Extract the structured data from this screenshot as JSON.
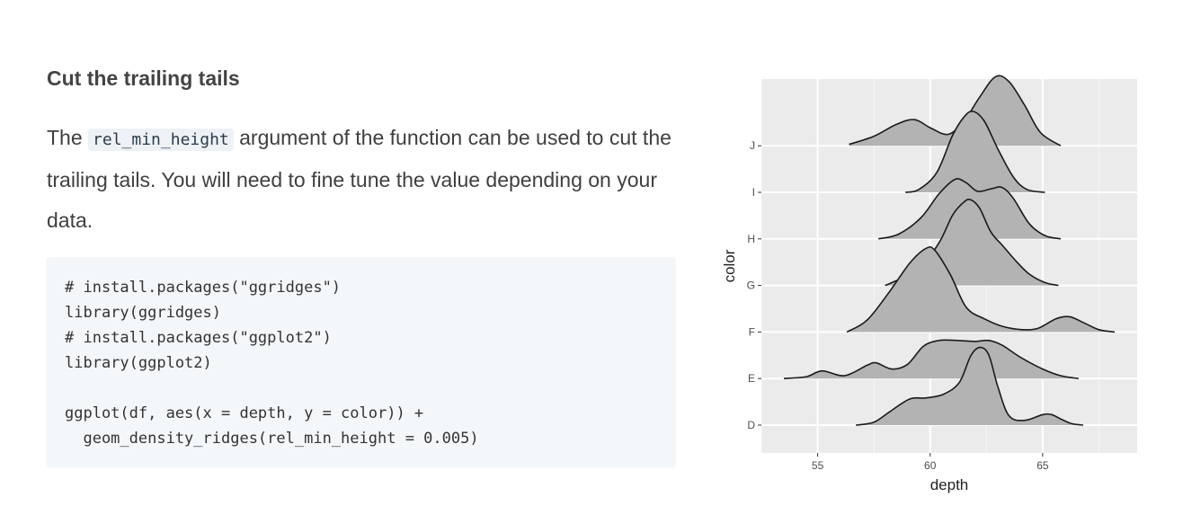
{
  "section": {
    "title": "Cut the trailing tails",
    "paragraph": {
      "before_code": "The ",
      "inline_code": "rel_min_height",
      "after_code": " argument of the function can be used to cut the trailing tails. You will need to fine tune the value depending on your data."
    }
  },
  "code_block": {
    "lines": [
      "# install.packages(\"ggridges\")",
      "library(ggridges)",
      "# install.packages(\"ggplot2\")",
      "library(ggplot2)",
      "",
      "ggplot(df, aes(x = depth, y = color)) +",
      "  geom_density_ridges(rel_min_height = 0.005)"
    ]
  },
  "chart_data": {
    "type": "area",
    "subtype": "density-ridgeline",
    "xlabel": "depth",
    "ylabel": "color",
    "x_ticks": [
      55,
      60,
      65
    ],
    "x_range": [
      52.5,
      69.2
    ],
    "categories": [
      "D",
      "E",
      "F",
      "G",
      "H",
      "I",
      "J"
    ],
    "grid": true,
    "panel_background": "#ebebeb",
    "fill_color": "#b3b3b3",
    "line_color": "#1a1a1a",
    "series": [
      {
        "category": "J",
        "x": [
          56.4,
          57.5,
          58.5,
          59.3,
          60.0,
          60.8,
          61.5,
          62.2,
          62.9,
          63.5,
          64.2,
          64.9,
          65.8
        ],
        "y": [
          0.03,
          0.2,
          0.45,
          0.55,
          0.38,
          0.24,
          0.52,
          1.02,
          1.45,
          1.35,
          0.85,
          0.28,
          0.0
        ]
      },
      {
        "category": "I",
        "x": [
          58.9,
          59.5,
          60.3,
          61.0,
          61.5,
          61.9,
          62.4,
          63.0,
          63.7,
          64.3,
          65.1
        ],
        "y": [
          0.0,
          0.06,
          0.42,
          1.2,
          1.58,
          1.7,
          1.5,
          0.92,
          0.32,
          0.06,
          0.0
        ]
      },
      {
        "category": "H",
        "x": [
          57.7,
          58.6,
          59.6,
          60.4,
          61.1,
          61.6,
          62.1,
          62.7,
          63.2,
          63.7,
          64.4,
          65.1,
          65.8
        ],
        "y": [
          0.0,
          0.1,
          0.45,
          0.95,
          1.25,
          1.18,
          1.0,
          1.05,
          1.08,
          0.85,
          0.32,
          0.07,
          0.0
        ]
      },
      {
        "category": "G",
        "x": [
          58.0,
          58.3,
          59.5,
          60.4,
          61.0,
          61.5,
          61.8,
          62.2,
          62.7,
          63.2,
          63.8,
          64.4,
          65.1,
          65.7
        ],
        "y": [
          0.0,
          0.06,
          0.35,
          0.9,
          1.48,
          1.75,
          1.8,
          1.62,
          1.12,
          0.85,
          0.52,
          0.24,
          0.06,
          0.0
        ]
      },
      {
        "category": "F",
        "x": [
          56.3,
          57.2,
          58.2,
          59.1,
          59.8,
          60.2,
          60.9,
          61.6,
          62.4,
          63.2,
          64.1,
          64.8,
          65.6,
          66.2,
          66.8,
          67.5,
          68.2
        ],
        "y": [
          0.0,
          0.25,
          0.85,
          1.45,
          1.75,
          1.72,
          1.2,
          0.52,
          0.28,
          0.12,
          0.05,
          0.08,
          0.28,
          0.32,
          0.2,
          0.05,
          0.0
        ]
      },
      {
        "category": "E",
        "x": [
          53.5,
          54.5,
          55.2,
          56.2,
          57.2,
          57.6,
          58.3,
          59.0,
          59.7,
          60.4,
          61.2,
          62.0,
          62.6,
          63.2,
          64.0,
          65.0,
          65.8,
          66.6
        ],
        "y": [
          0.0,
          0.04,
          0.16,
          0.06,
          0.28,
          0.33,
          0.2,
          0.3,
          0.68,
          0.8,
          0.8,
          0.78,
          0.8,
          0.7,
          0.45,
          0.2,
          0.06,
          0.0
        ]
      },
      {
        "category": "D",
        "x": [
          56.7,
          57.5,
          58.2,
          59.1,
          59.8,
          60.6,
          61.3,
          61.8,
          62.2,
          62.6,
          63.0,
          63.5,
          64.2,
          65.0,
          65.4,
          65.8,
          66.3,
          66.8
        ],
        "y": [
          0.0,
          0.06,
          0.28,
          0.55,
          0.57,
          0.65,
          0.9,
          1.45,
          1.63,
          1.48,
          0.82,
          0.2,
          0.1,
          0.22,
          0.22,
          0.13,
          0.03,
          0.0
        ]
      }
    ]
  }
}
